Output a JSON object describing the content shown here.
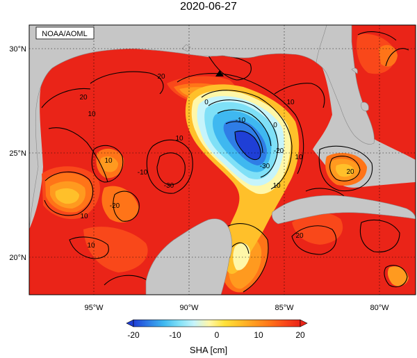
{
  "title": "2020-06-27",
  "credit": "NOAA/AOML",
  "colorbar": {
    "label": "SHA [cm]",
    "ticks": [
      "-20",
      "-10",
      "0",
      "10",
      "20"
    ],
    "stops": [
      "#1f3fd6",
      "#2f7de6",
      "#3fb8f0",
      "#7fe0f7",
      "#c6f4fb",
      "#fff7a8",
      "#ffe23a",
      "#ffc02a",
      "#ff9a1f",
      "#ff7418",
      "#f9481a",
      "#ea2418"
    ]
  },
  "axes": {
    "lon_ticks": [
      "95°W",
      "90°W",
      "85°W",
      "80°W"
    ],
    "lat_ticks": [
      "30°N",
      "25°N",
      "20°N"
    ]
  },
  "contour_labels": [
    "20",
    "20",
    "10",
    "10",
    "0",
    "10",
    "0",
    "-10",
    "-20",
    "-30",
    "10",
    "10",
    "-10",
    "-20",
    "-30",
    "20",
    "10",
    "10",
    "20",
    "10"
  ],
  "colors": {
    "land": "#c6c6c6",
    "ocean_base": "#ea2418",
    "contour": "#000000"
  },
  "marker": {
    "symbol": "triangle"
  }
}
